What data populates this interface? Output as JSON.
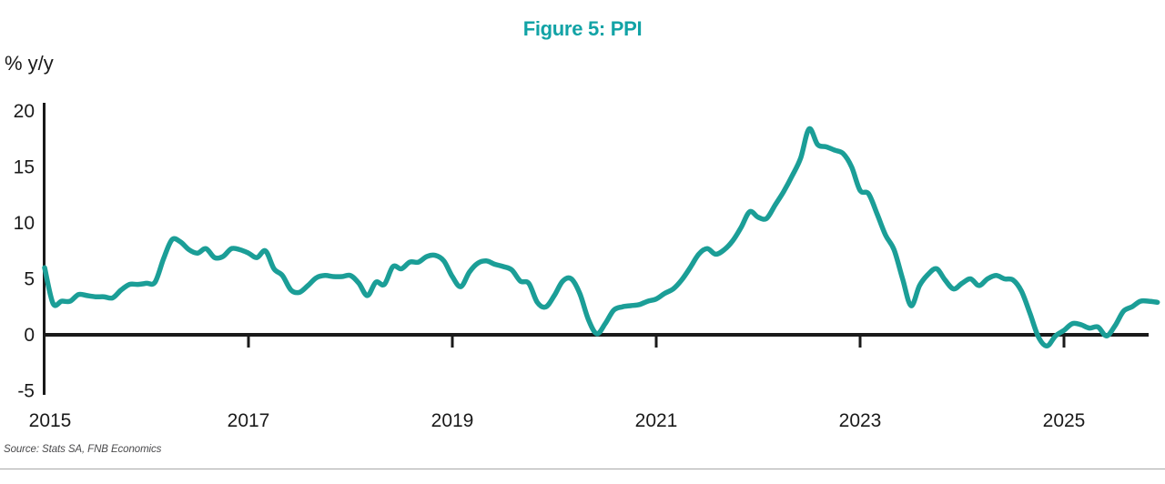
{
  "title": "Figure 5: PPI",
  "source_note": "Source: Stats SA, FNB Economics",
  "colors": {
    "accent_teal": "#12a3a6",
    "line_teal": "#1b9e97",
    "axis_black": "#1a1a1a",
    "source_gray": "#4a4a4c",
    "divider_gray": "#a8a8a8"
  },
  "chart_data": {
    "type": "line",
    "title": "Figure 5: PPI",
    "xlabel": "",
    "ylabel": "% y/y",
    "ylim": [
      -5,
      20
    ],
    "yticks": [
      20,
      15,
      10,
      5,
      0,
      -5
    ],
    "xticks": [
      2015,
      2017,
      2019,
      2021,
      2023,
      2025
    ],
    "x_start_year": 2015,
    "frequency": "monthly",
    "grid": false,
    "legend": "none",
    "series": [
      {
        "name": "PPI % y/y",
        "values": [
          6.0,
          2.8,
          3.0,
          3.0,
          3.6,
          3.5,
          3.4,
          3.4,
          3.3,
          4.0,
          4.5,
          4.5,
          4.6,
          4.7,
          6.8,
          8.5,
          8.3,
          7.6,
          7.3,
          7.7,
          6.9,
          7.0,
          7.7,
          7.6,
          7.3,
          6.9,
          7.5,
          5.9,
          5.3,
          4.0,
          3.8,
          4.4,
          5.1,
          5.3,
          5.2,
          5.2,
          5.3,
          4.6,
          3.5,
          4.7,
          4.5,
          6.1,
          5.9,
          6.5,
          6.5,
          7.0,
          7.1,
          6.6,
          5.2,
          4.3,
          5.6,
          6.4,
          6.6,
          6.3,
          6.1,
          5.8,
          4.8,
          4.6,
          2.9,
          2.5,
          3.5,
          4.8,
          5.0,
          3.7,
          1.4,
          0.1,
          1.0,
          2.2,
          2.5,
          2.6,
          2.7,
          3.0,
          3.2,
          3.7,
          4.1,
          4.9,
          6.0,
          7.2,
          7.7,
          7.2,
          7.6,
          8.4,
          9.6,
          11.0,
          10.5,
          10.4,
          11.6,
          12.8,
          14.2,
          15.8,
          18.4,
          17.0,
          16.8,
          16.5,
          16.2,
          15.0,
          12.9,
          12.6,
          10.8,
          8.9,
          7.6,
          5.0,
          2.6,
          4.4,
          5.4,
          5.9,
          4.9,
          4.1,
          4.6,
          5.0,
          4.4,
          5.0,
          5.3,
          5.0,
          4.9,
          3.9,
          1.9,
          -0.2,
          -1.0,
          -0.1,
          0.4,
          1.0,
          0.9,
          0.6,
          0.7,
          -0.1,
          0.8,
          2.1,
          2.5,
          3.0,
          3.0,
          2.9
        ]
      }
    ]
  }
}
